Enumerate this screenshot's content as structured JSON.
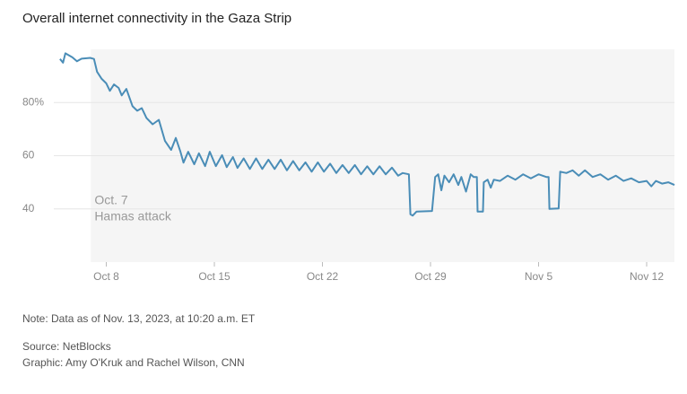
{
  "chart_data": {
    "type": "line",
    "title": "Overall internet connectivity in the Gaza Strip",
    "color": "#4a8db7",
    "shade_from": 7,
    "annotation": {
      "x": 7,
      "lines": [
        "Oct. 7",
        "Hamas attack"
      ]
    },
    "xlim": [
      4.6,
      44.8
    ],
    "xticks": [
      {
        "value": 8,
        "label": "Oct 8"
      },
      {
        "value": 15,
        "label": "Oct 15"
      },
      {
        "value": 22,
        "label": "Oct 22"
      },
      {
        "value": 29,
        "label": "Oct 29"
      },
      {
        "value": 36,
        "label": "Nov 5"
      },
      {
        "value": 43,
        "label": "Nov 12"
      }
    ],
    "ylim": [
      20,
      100
    ],
    "yticks": [
      40,
      60,
      {
        "value": 80,
        "label": "80%"
      }
    ],
    "grid": true,
    "x": [
      5.0,
      5.2,
      5.35,
      5.8,
      6.1,
      6.4,
      6.96,
      7.2,
      7.4,
      7.7,
      8.0,
      8.23,
      8.5,
      8.8,
      9.0,
      9.3,
      9.7,
      10.0,
      10.3,
      10.6,
      11.0,
      11.4,
      11.8,
      12.2,
      12.5,
      12.8,
      13.0,
      13.3,
      13.7,
      14.0,
      14.4,
      14.7,
      15.1,
      15.5,
      15.8,
      16.2,
      16.5,
      16.9,
      17.3,
      17.7,
      18.1,
      18.5,
      18.9,
      19.3,
      19.7,
      20.1,
      20.5,
      20.9,
      21.3,
      21.7,
      22.1,
      22.5,
      22.9,
      23.3,
      23.7,
      24.1,
      24.5,
      24.9,
      25.3,
      25.7,
      26.1,
      26.5,
      26.9,
      27.2,
      27.6,
      27.7,
      27.85,
      28.1,
      29.1,
      29.3,
      29.5,
      29.7,
      29.9,
      30.2,
      30.5,
      30.8,
      31.0,
      31.3,
      31.6,
      31.8,
      32.0,
      32.05,
      32.4,
      32.45,
      32.7,
      32.9,
      33.1,
      33.5,
      34.0,
      34.5,
      35.0,
      35.5,
      36.0,
      36.5,
      36.65,
      36.7,
      37.3,
      37.4,
      37.8,
      38.2,
      38.6,
      39.0,
      39.5,
      40.0,
      40.5,
      41.0,
      41.5,
      42.0,
      42.5,
      43.0,
      43.3,
      43.6,
      44.0,
      44.4,
      44.8
    ],
    "values": [
      96.4,
      95,
      98.5,
      97,
      95.5,
      96.5,
      96.8,
      96.4,
      91.6,
      88.9,
      87.2,
      84.4,
      86.8,
      85.5,
      82.7,
      85.1,
      78.6,
      76.9,
      77.9,
      74.2,
      71.8,
      73.5,
      65.6,
      62.2,
      66.7,
      61.5,
      57.4,
      61.5,
      56.8,
      60.9,
      56.1,
      61.5,
      56.1,
      60.2,
      55.7,
      59.5,
      55.4,
      59,
      55,
      59,
      55,
      58.5,
      55,
      58.5,
      54.5,
      58,
      54.5,
      57.5,
      54,
      57.5,
      54,
      57,
      53.5,
      56.5,
      53.5,
      56.5,
      53,
      56,
      53,
      56,
      53,
      55.5,
      52.5,
      53.5,
      53,
      38,
      37.5,
      39,
      39.2,
      52,
      53,
      47,
      52.5,
      50,
      53,
      49,
      52,
      46.5,
      53,
      52,
      52,
      39,
      39,
      50,
      51,
      48,
      51,
      50.5,
      52.5,
      51,
      53,
      51.5,
      53,
      52,
      52,
      40,
      40.2,
      54,
      53.5,
      54.5,
      52.5,
      54.5,
      52,
      53,
      51,
      52.5,
      50.5,
      51.5,
      50,
      50.5,
      48.5,
      50.5,
      49.5,
      50,
      49
    ]
  },
  "footer": {
    "note": "Note: Data as of Nov. 13, 2023, at 10:20 a.m. ET",
    "source": "Source: NetBlocks",
    "credit": "Graphic: Amy O'Kruk and Rachel Wilson, CNN"
  }
}
